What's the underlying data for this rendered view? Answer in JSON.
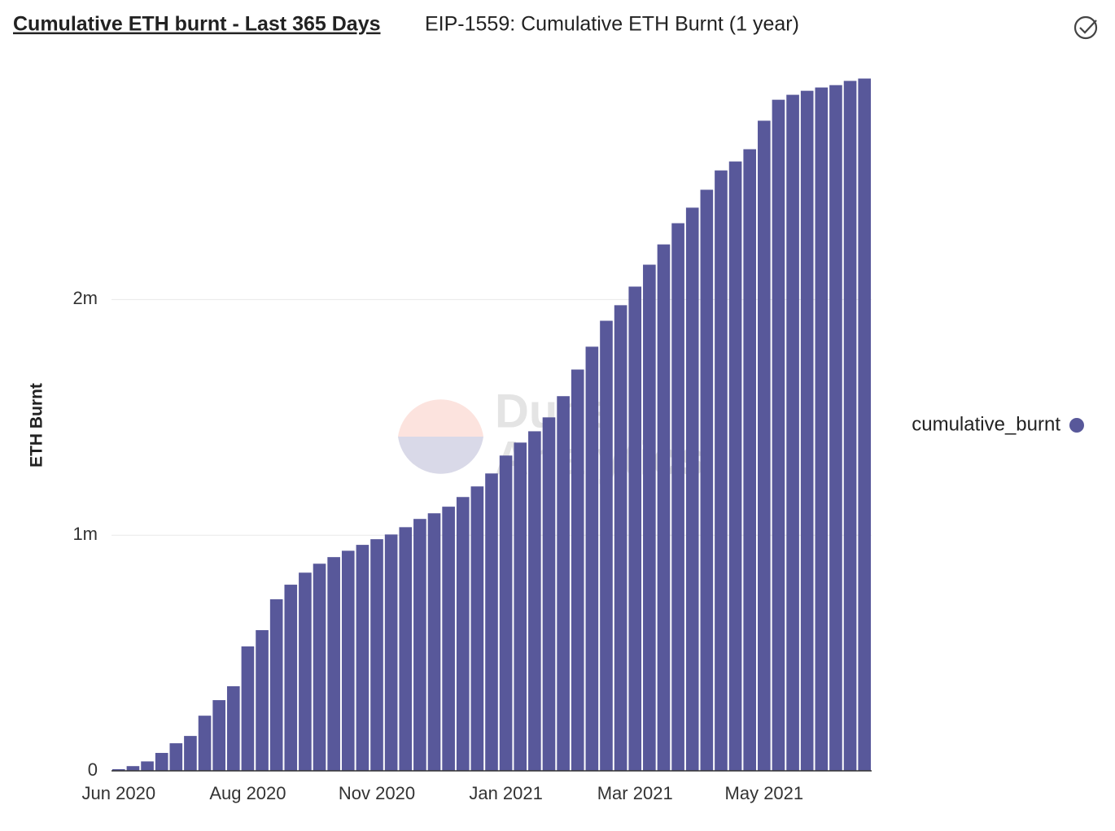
{
  "chart_data": {
    "type": "bar",
    "title": "Cumulative ETH burnt - Last 365 Days",
    "subtitle": "EIP-1559: Cumulative ETH Burnt (1 year)",
    "y_label": "ETH Burnt",
    "watermark": [
      "Dune",
      "Analytics"
    ],
    "categories": [
      "Jun 2020",
      null,
      null,
      null,
      null,
      null,
      null,
      null,
      null,
      "Aug 2020",
      null,
      null,
      null,
      null,
      null,
      null,
      null,
      null,
      "Nov 2020",
      null,
      null,
      null,
      null,
      null,
      null,
      null,
      null,
      "Jan 2021",
      null,
      null,
      null,
      null,
      null,
      null,
      null,
      null,
      "Mar 2021",
      null,
      null,
      null,
      null,
      null,
      null,
      null,
      null,
      "May 2021",
      null,
      null,
      null,
      null,
      null,
      null,
      null
    ],
    "series": [
      {
        "name": "cumulative_burnt",
        "color": "#58589a",
        "values": [
          7000,
          20000,
          40000,
          76000,
          117000,
          148000,
          234000,
          300000,
          359000,
          528000,
          597000,
          728000,
          790000,
          841000,
          879000,
          907000,
          934000,
          959000,
          983000,
          1003000,
          1034000,
          1069000,
          1093000,
          1121000,
          1162000,
          1207000,
          1262000,
          1338000,
          1393000,
          1441000,
          1500000,
          1590000,
          1703000,
          1800000,
          1910000,
          1976000,
          2055000,
          2148000,
          2234000,
          2324000,
          2390000,
          2466000,
          2548000,
          2586000,
          2638000,
          2759000,
          2848000,
          2869000,
          2886000,
          2900000,
          2910000,
          2928000,
          2938000
        ]
      }
    ],
    "ylim": [
      0,
      2940000
    ],
    "yticks": [
      0,
      {
        "value": 1000000,
        "label": "1m"
      },
      {
        "value": 2000000,
        "label": "2m"
      }
    ],
    "grid": true,
    "legend": "right"
  }
}
